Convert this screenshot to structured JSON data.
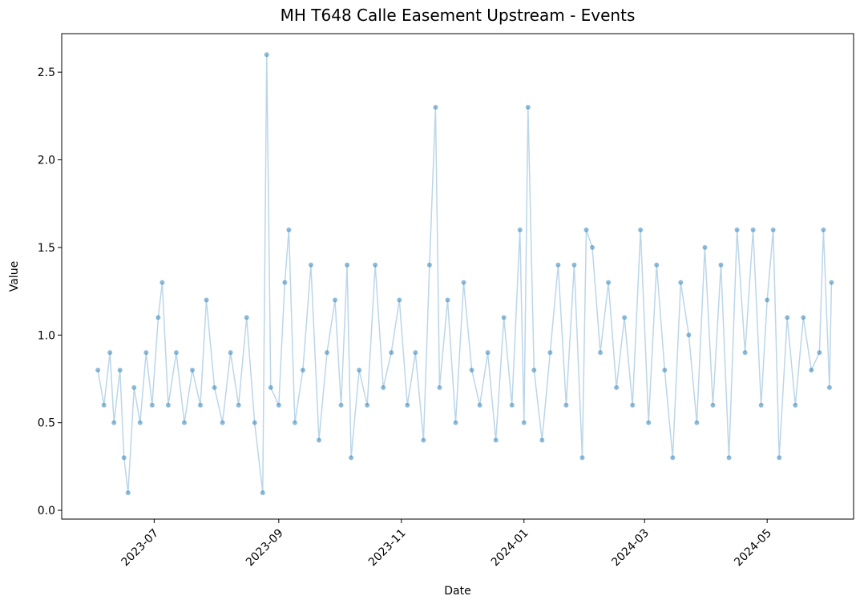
{
  "chart_data": {
    "type": "line",
    "title": "MH T648 Calle Easement Upstream - Events",
    "xlabel": "Date",
    "ylabel": "Value",
    "x": [
      "2023-06-03",
      "2023-06-06",
      "2023-06-09",
      "2023-06-11",
      "2023-06-14",
      "2023-06-16",
      "2023-06-18",
      "2023-06-21",
      "2023-06-24",
      "2023-06-27",
      "2023-06-30",
      "2023-07-03",
      "2023-07-05",
      "2023-07-08",
      "2023-07-12",
      "2023-07-16",
      "2023-07-20",
      "2023-07-24",
      "2023-07-27",
      "2023-07-31",
      "2023-08-04",
      "2023-08-08",
      "2023-08-12",
      "2023-08-16",
      "2023-08-20",
      "2023-08-24",
      "2023-08-26",
      "2023-08-28",
      "2023-09-01",
      "2023-09-04",
      "2023-09-06",
      "2023-09-09",
      "2023-09-13",
      "2023-09-17",
      "2023-09-21",
      "2023-09-25",
      "2023-09-29",
      "2023-10-02",
      "2023-10-05",
      "2023-10-07",
      "2023-10-11",
      "2023-10-15",
      "2023-10-19",
      "2023-10-23",
      "2023-10-27",
      "2023-10-31",
      "2023-11-04",
      "2023-11-08",
      "2023-11-12",
      "2023-11-15",
      "2023-11-18",
      "2023-11-20",
      "2023-11-24",
      "2023-11-28",
      "2023-12-02",
      "2023-12-06",
      "2023-12-10",
      "2023-12-14",
      "2023-12-18",
      "2023-12-22",
      "2023-12-26",
      "2023-12-30",
      "2024-01-01",
      "2024-01-03",
      "2024-01-06",
      "2024-01-10",
      "2024-01-14",
      "2024-01-18",
      "2024-01-22",
      "2024-01-26",
      "2024-01-30",
      "2024-02-01",
      "2024-02-04",
      "2024-02-08",
      "2024-02-12",
      "2024-02-16",
      "2024-02-20",
      "2024-02-24",
      "2024-02-28",
      "2024-03-03",
      "2024-03-07",
      "2024-03-11",
      "2024-03-15",
      "2024-03-19",
      "2024-03-23",
      "2024-03-27",
      "2024-03-31",
      "2024-04-04",
      "2024-04-08",
      "2024-04-12",
      "2024-04-16",
      "2024-04-20",
      "2024-04-24",
      "2024-04-28",
      "2024-05-01",
      "2024-05-04",
      "2024-05-07",
      "2024-05-11",
      "2024-05-15",
      "2024-05-19",
      "2024-05-23",
      "2024-05-27",
      "2024-05-29",
      "2024-06-01",
      "2024-06-02"
    ],
    "series": [
      {
        "color": "#1f77b4",
        "values": [
          0.8,
          0.6,
          0.9,
          0.5,
          0.8,
          0.3,
          0.1,
          0.7,
          0.5,
          0.9,
          0.6,
          1.1,
          1.3,
          0.6,
          0.9,
          0.5,
          0.8,
          0.6,
          1.2,
          0.7,
          0.5,
          0.9,
          0.6,
          1.1,
          0.5,
          0.1,
          2.6,
          0.7,
          0.6,
          1.3,
          1.6,
          0.5,
          0.8,
          1.4,
          0.4,
          0.9,
          1.2,
          0.6,
          1.4,
          0.3,
          0.8,
          0.6,
          1.4,
          0.7,
          0.9,
          1.2,
          0.6,
          0.9,
          0.4,
          1.4,
          2.3,
          0.7,
          1.2,
          0.5,
          1.3,
          0.8,
          0.6,
          0.9,
          0.4,
          1.1,
          0.6,
          1.6,
          0.5,
          2.3,
          0.8,
          0.4,
          0.9,
          1.4,
          0.6,
          1.4,
          0.3,
          1.6,
          1.5,
          0.9,
          1.3,
          0.7,
          1.1,
          0.6,
          1.6,
          0.5,
          1.4,
          0.8,
          0.3,
          1.3,
          1.0,
          0.5,
          1.5,
          0.6,
          1.4,
          0.3,
          1.6,
          0.9,
          1.6,
          0.6,
          1.2,
          1.6,
          0.3,
          1.1,
          0.6,
          1.1,
          0.8,
          0.9,
          1.6,
          0.7,
          1.3
        ]
      }
    ],
    "xlim": [
      "2023-05-16",
      "2024-06-13"
    ],
    "xticks": [
      {
        "value": "2023-07",
        "label": "2023-07"
      },
      {
        "value": "2023-09",
        "label": "2023-09"
      },
      {
        "value": "2023-11",
        "label": "2023-11"
      },
      {
        "value": "2024-01",
        "label": "2024-01"
      },
      {
        "value": "2024-03",
        "label": "2024-03"
      },
      {
        "value": "2024-05",
        "label": "2024-05"
      }
    ],
    "ylim": [
      -0.05,
      2.72
    ],
    "yticks": [
      {
        "value": 0,
        "label": "0.0"
      },
      0.5,
      {
        "value": 1,
        "label": "1.0"
      },
      1.5,
      {
        "value": 2,
        "label": "2.0"
      },
      2.5
    ]
  }
}
